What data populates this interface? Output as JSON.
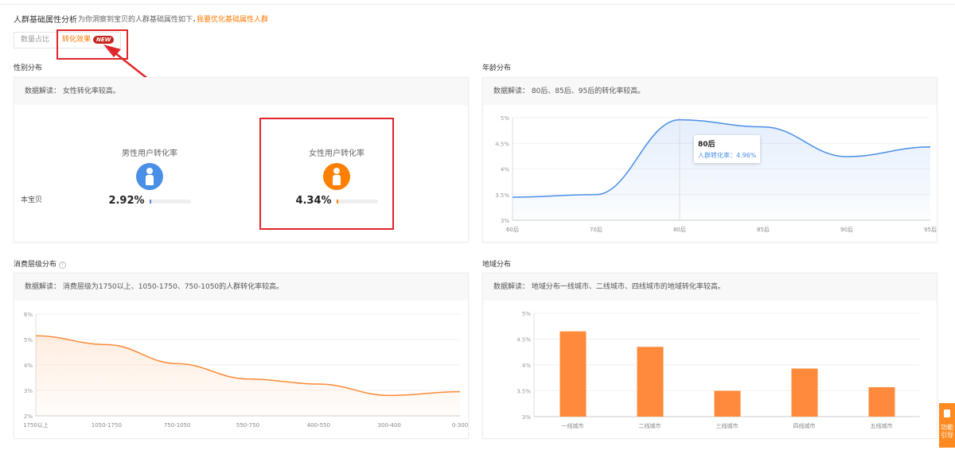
{
  "header": {
    "title": "人群基础属性分析",
    "subtitle": "为你洞察到宝贝的人群基础属性如下，",
    "link": "我要优化基础属性人群"
  },
  "tabs": [
    {
      "label": "数量占比",
      "active": false
    },
    {
      "label": "转化效果",
      "active": true,
      "badge": "NEW"
    }
  ],
  "gender": {
    "section_title": "性别分布",
    "insight": "数据解读： 女性转化率较高。",
    "row_label": "本宝贝",
    "male": {
      "label": "男性用户转化率",
      "value": "2.92%",
      "fraction": 0.0292,
      "color": "#4a8fe7"
    },
    "female": {
      "label": "女性用户转化率",
      "value": "4.34%",
      "fraction": 0.0434,
      "color": "#ff7f00"
    }
  },
  "age": {
    "section_title": "年龄分布",
    "insight": "数据解读： 80后、85后、95后的转化率较高。",
    "tooltip": {
      "title": "80后",
      "text": "人群转化率：4.96%"
    }
  },
  "consumption": {
    "section_title": "消费层级分布",
    "help_icon": "question-circle-icon",
    "insight": "数据解读： 消费层级为1750以上、1050-1750、750-1050的人群转化率较高。"
  },
  "region": {
    "section_title": "地域分布",
    "insight": "数据解读： 地域分布一线城市、二线城市、四线城市的地域转化率较高。"
  },
  "side_button": {
    "label": "功能引导",
    "icon": "guide-icon"
  },
  "chart_data": [
    {
      "type": "line",
      "id": "age",
      "categories": [
        "60后",
        "70后",
        "80后",
        "85后",
        "90后",
        "95后"
      ],
      "values": [
        3.45,
        3.5,
        4.96,
        4.82,
        4.24,
        4.43
      ],
      "ylim": [
        3,
        5
      ],
      "yticks": [
        "3%",
        "3.5%",
        "4%",
        "4.5%",
        "5%"
      ],
      "color": "#4a8fe7",
      "grid": true
    },
    {
      "type": "area",
      "id": "consumption",
      "categories": [
        "1750以上",
        "1050-1750",
        "750-1050",
        "550-750",
        "400-550",
        "300-400",
        "0-300"
      ],
      "values": [
        5.15,
        4.8,
        4.05,
        3.45,
        3.25,
        2.8,
        2.95
      ],
      "ylim": [
        2,
        6
      ],
      "yticks": [
        "2%",
        "3%",
        "4%",
        "5%",
        "6%"
      ],
      "color": "#ff8a35",
      "grid": true
    },
    {
      "type": "bar",
      "id": "region",
      "categories": [
        "一线城市",
        "二线城市",
        "三线城市",
        "四线城市",
        "五线城市"
      ],
      "values": [
        4.65,
        4.35,
        3.5,
        3.93,
        3.57
      ],
      "ylim": [
        3,
        5
      ],
      "yticks": [
        "3%",
        "3.5%",
        "4%",
        "4.5%",
        "5%"
      ],
      "color": "#ff8a3b",
      "grid": true
    }
  ]
}
